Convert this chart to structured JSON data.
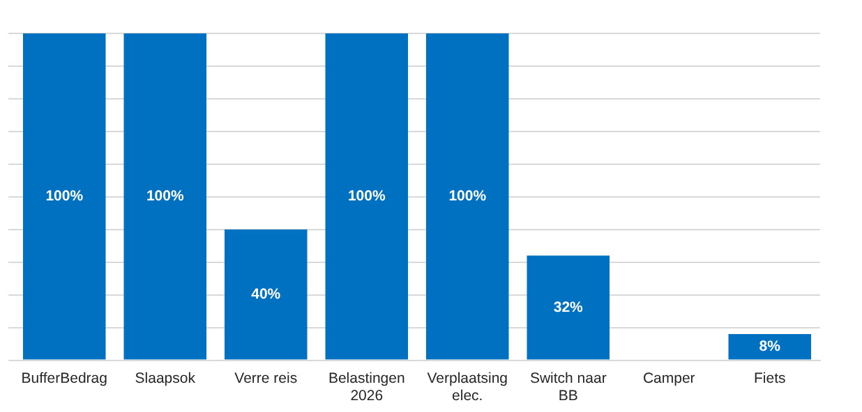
{
  "chart_data": {
    "type": "bar",
    "categories": [
      "BufferBedrag",
      "Slaapsok",
      "Verre reis",
      "Belastingen 2026",
      "Verplaatsing elec.",
      "Switch naar BB",
      "Camper",
      "Fiets"
    ],
    "values": [
      100,
      100,
      40,
      100,
      100,
      32,
      0,
      8
    ],
    "value_labels": [
      "100%",
      "100%",
      "40%",
      "100%",
      "100%",
      "32%",
      null,
      "8%"
    ],
    "color": "#0070c0",
    "ylim": [
      0,
      100
    ],
    "yticks": [
      {
        "value": 0,
        "label": null
      },
      {
        "value": 10,
        "label": null
      },
      {
        "value": 20,
        "label": null
      },
      {
        "value": 30,
        "label": null
      },
      {
        "value": 40,
        "label": null
      },
      {
        "value": 50,
        "label": null
      },
      {
        "value": 60,
        "label": null
      },
      {
        "value": 70,
        "label": null
      },
      {
        "value": 80,
        "label": null
      },
      {
        "value": 90,
        "label": null
      },
      {
        "value": 100,
        "label": null
      }
    ],
    "grid": "y",
    "tick_labels": "x",
    "legend": false
  }
}
